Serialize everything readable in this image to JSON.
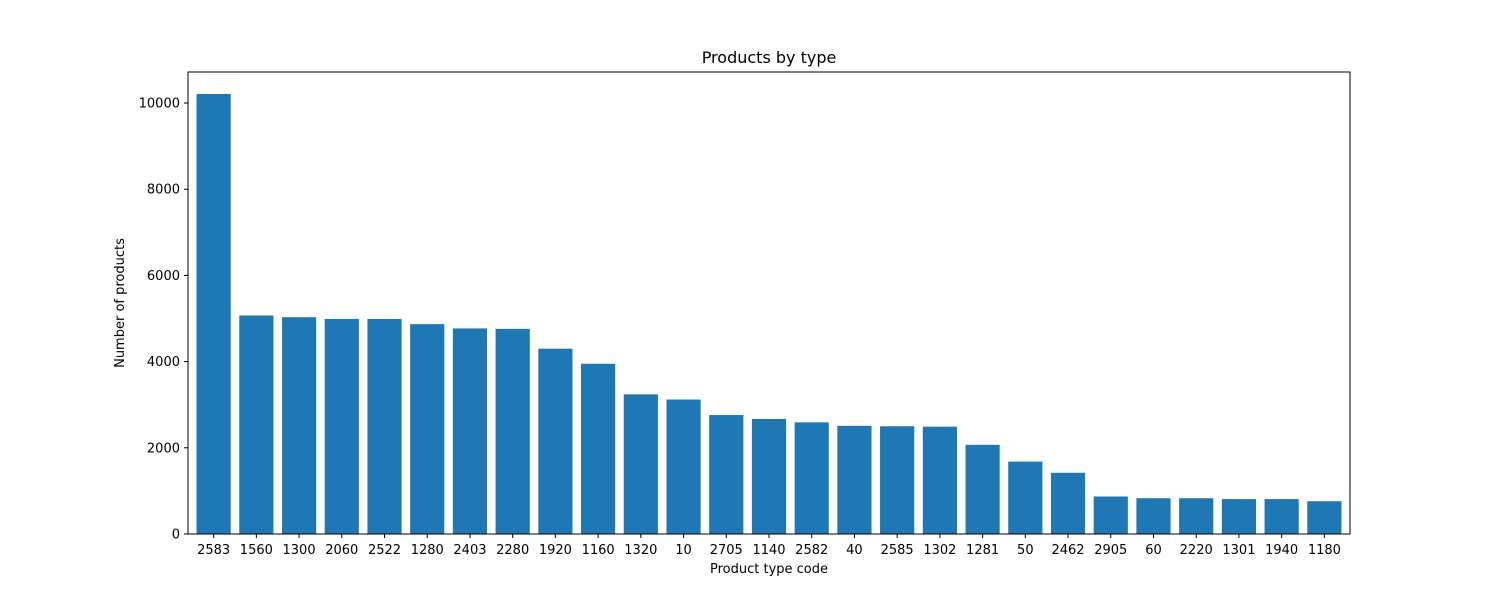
{
  "chart_data": {
    "type": "bar",
    "title": "Products by type",
    "xlabel": "Product type code",
    "ylabel": "Number of products",
    "categories": [
      "2583",
      "1560",
      "1300",
      "2060",
      "2522",
      "1280",
      "2403",
      "2280",
      "1920",
      "1160",
      "1320",
      "10",
      "2705",
      "1140",
      "2582",
      "40",
      "2585",
      "1302",
      "1281",
      "50",
      "2462",
      "2905",
      "60",
      "2220",
      "1301",
      "1940",
      "1180"
    ],
    "values": [
      10210,
      5070,
      5030,
      4990,
      4990,
      4870,
      4770,
      4760,
      4300,
      3950,
      3240,
      3120,
      2760,
      2670,
      2590,
      2510,
      2500,
      2490,
      2070,
      1680,
      1420,
      870,
      830,
      830,
      810,
      810,
      760
    ],
    "ylim": [
      0,
      10720
    ],
    "yticks": [
      0,
      2000,
      4000,
      6000,
      8000,
      10000
    ],
    "grid": false,
    "bar_color": "#1f77b4"
  }
}
